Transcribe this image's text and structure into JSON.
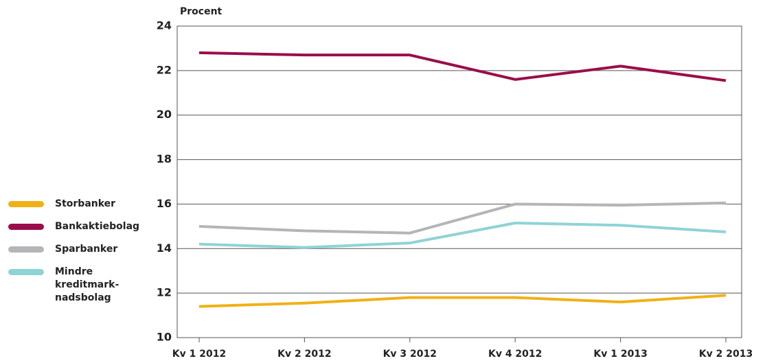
{
  "chart_data": {
    "type": "line",
    "y_label": "Procent",
    "categories": [
      "Kv 1 2012",
      "Kv 2 2012",
      "Kv 3 2012",
      "Kv 4 2012",
      "Kv 1 2013",
      "Kv 2 2013"
    ],
    "series": [
      {
        "name": "Storbanker",
        "color": "#f0b116",
        "values": [
          11.4,
          11.55,
          11.8,
          11.8,
          11.6,
          11.9
        ]
      },
      {
        "name": "Bankaktiebolag",
        "color": "#9b0d4a",
        "values": [
          22.8,
          22.7,
          22.7,
          21.6,
          22.2,
          21.55
        ]
      },
      {
        "name": "Sparbanker",
        "color": "#b5b4b8",
        "values": [
          15.0,
          14.8,
          14.7,
          16.0,
          15.95,
          16.05
        ]
      },
      {
        "name": "Mindre kreditmark-nadsbolag",
        "color": "#8fd3d6",
        "values": [
          14.2,
          14.05,
          14.25,
          15.15,
          15.05,
          14.75
        ]
      }
    ],
    "ylim": [
      10,
      24
    ],
    "yticks": [
      10,
      12,
      14,
      16,
      18,
      20,
      22,
      24
    ],
    "grid": true
  }
}
